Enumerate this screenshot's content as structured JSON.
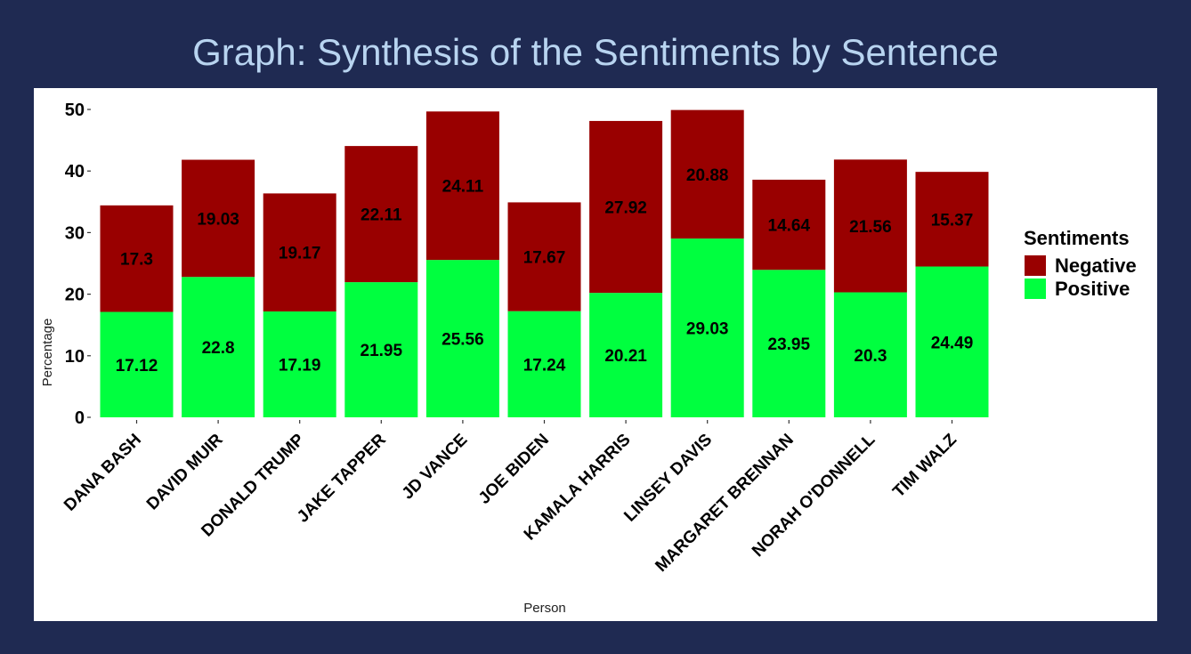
{
  "page": {
    "title": "Graph: Synthesis of the Sentiments by Sentence",
    "background_color": "#1f2a52",
    "title_color": "#b8d4f0"
  },
  "chart_data": {
    "type": "bar",
    "stacked": true,
    "xlabel": "Person",
    "ylabel": "Percentage",
    "ylim": [
      0,
      50
    ],
    "yticks": [
      0,
      10,
      20,
      30,
      40,
      50
    ],
    "grid": false,
    "legend": {
      "title": "Sentiments",
      "position": "right"
    },
    "categories": [
      "DANA BASH",
      "DAVID MUIR",
      "DONALD TRUMP",
      "JAKE TAPPER",
      "JD VANCE",
      "JOE BIDEN",
      "KAMALA HARRIS",
      "LINSEY DAVIS",
      "MARGARET BRENNAN",
      "NORAH O'DONNELL",
      "TIM WALZ"
    ],
    "series": [
      {
        "name": "Positive",
        "color": "#00ff3f",
        "values": [
          17.12,
          22.8,
          17.19,
          21.95,
          25.56,
          17.24,
          20.21,
          29.03,
          23.95,
          20.3,
          24.49
        ]
      },
      {
        "name": "Negative",
        "color": "#990000",
        "values": [
          17.3,
          19.03,
          19.17,
          22.11,
          24.11,
          17.67,
          27.92,
          20.88,
          14.64,
          21.56,
          15.37
        ]
      }
    ],
    "legend_order": [
      "Negative",
      "Positive"
    ]
  }
}
